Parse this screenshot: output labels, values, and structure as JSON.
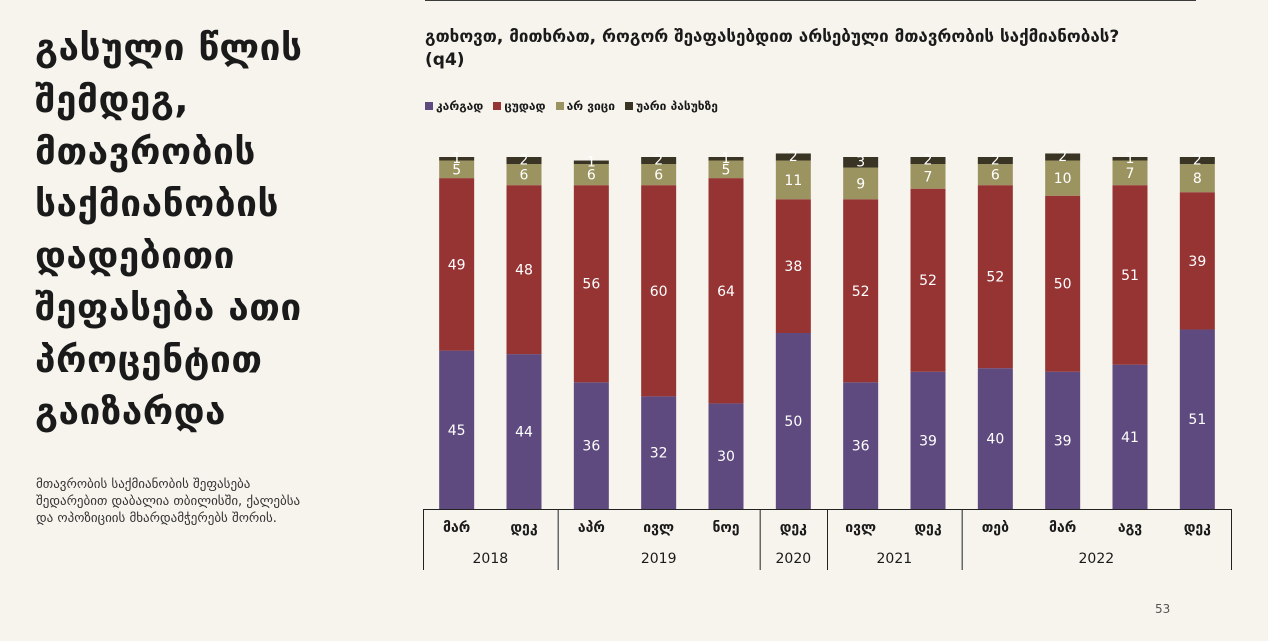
{
  "left_title": "გასული წლის შემდეგ, მთავრობის საქმიანობის დადებითი შეფასება ათი პროცენტით გაიზარდა",
  "left_description": "მთავრობის საქმიანობის შეფასება შედარებით დაბალია თბილისში, ქალებსა და ოპოზიციის მხარდამჭერებს შორის.",
  "page_number": "53",
  "chart_data": {
    "type": "bar",
    "stacked": true,
    "title": "გთხოვთ, მითხრათ, როგორ შეაფასებდით არსებული მთავრობის საქმიანობას? (q4)",
    "categories": [
      "მარ",
      "დეკ",
      "აპრ",
      "ივლ",
      "ნოე",
      "დეკ",
      "ივლ",
      "დეკ",
      "თებ",
      "მარ",
      "აგვ",
      "დეკ"
    ],
    "years": [
      {
        "label": "2018",
        "from": 0,
        "to": 1
      },
      {
        "label": "2019",
        "from": 2,
        "to": 4
      },
      {
        "label": "2020",
        "from": 5,
        "to": 5
      },
      {
        "label": "2021",
        "from": 6,
        "to": 7
      },
      {
        "label": "2022",
        "from": 8,
        "to": 11
      }
    ],
    "series": [
      {
        "name": "კარგად",
        "color": "#5e4a7e",
        "values": [
          45,
          44,
          36,
          32,
          30,
          50,
          36,
          39,
          40,
          39,
          41,
          51
        ]
      },
      {
        "name": "ცუდად",
        "color": "#963434",
        "values": [
          49,
          48,
          56,
          60,
          64,
          38,
          52,
          52,
          52,
          50,
          51,
          39
        ]
      },
      {
        "name": "არ ვიცი",
        "color": "#9c9460",
        "values": [
          5,
          6,
          6,
          6,
          5,
          11,
          9,
          7,
          6,
          10,
          7,
          8
        ]
      },
      {
        "name": "უარი პასუხზე",
        "color": "#3a3424",
        "values": [
          1,
          2,
          1,
          2,
          1,
          2,
          3,
          2,
          2,
          2,
          1,
          2
        ]
      }
    ],
    "ylim": [
      0,
      100
    ],
    "legend": "top-left",
    "grid": false
  }
}
